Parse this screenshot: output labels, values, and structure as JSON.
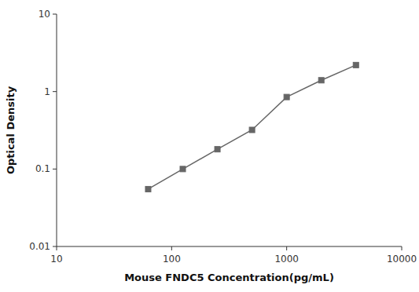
{
  "chart_data": {
    "type": "line",
    "x": [
      62.5,
      125,
      250,
      500,
      1000,
      2000,
      4000
    ],
    "values": [
      0.055,
      0.1,
      0.18,
      0.32,
      0.85,
      1.4,
      2.2
    ],
    "xlabel": "Mouse FNDC5 Concentration(pg/mL)",
    "ylabel": "Optical Density",
    "xlim": [
      10,
      10000
    ],
    "ylim": [
      0.01,
      10
    ],
    "xticks": [
      10,
      100,
      1000,
      10000
    ],
    "yticks": [
      0.01,
      0.1,
      1,
      10
    ],
    "log": true,
    "grid": false,
    "color": "#666666",
    "marker": "square"
  }
}
